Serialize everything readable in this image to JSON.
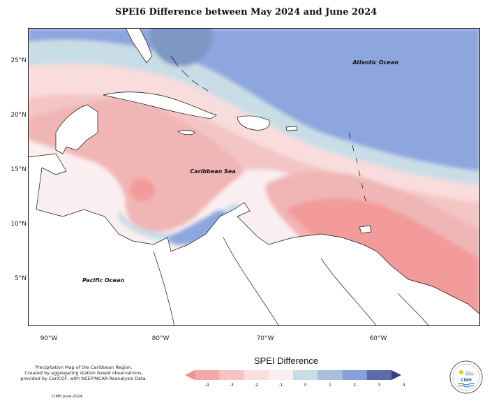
{
  "title": "SPEI6 Difference between May 2024 and June 2024",
  "map_labels": {
    "atlantic": "Atlantic Ocean",
    "caribbean": "Caribbean Sea",
    "pacific": "Pacific Ocean"
  },
  "y_ticks": [
    "25°N",
    "20°N",
    "15°N",
    "10°N",
    "5°N"
  ],
  "x_ticks": [
    "90°W",
    "80°W",
    "70°W",
    "60°W"
  ],
  "legend": {
    "title": "SPEI Difference",
    "labels": [
      "-4",
      "-3",
      "-2",
      "-1",
      "0",
      "1",
      "2",
      "3",
      "4"
    ],
    "colors": [
      "#f28e8e",
      "#f4a9a9",
      "#f4c4c4",
      "#f9dede",
      "#fbeef0",
      "#c8dce4",
      "#a7bfdc",
      "#8a9fd9",
      "#5c6aa9",
      "#3a3f82"
    ]
  },
  "credit_lines": [
    "Precipitation Map of the Caribbean Region.",
    "Created by aggregating station based observations,",
    "provided by CariCOF, with NCEP/NCAR Reanalysis Data."
  ],
  "footer": "CIMH June-2024",
  "logo_text": "CIMH"
}
